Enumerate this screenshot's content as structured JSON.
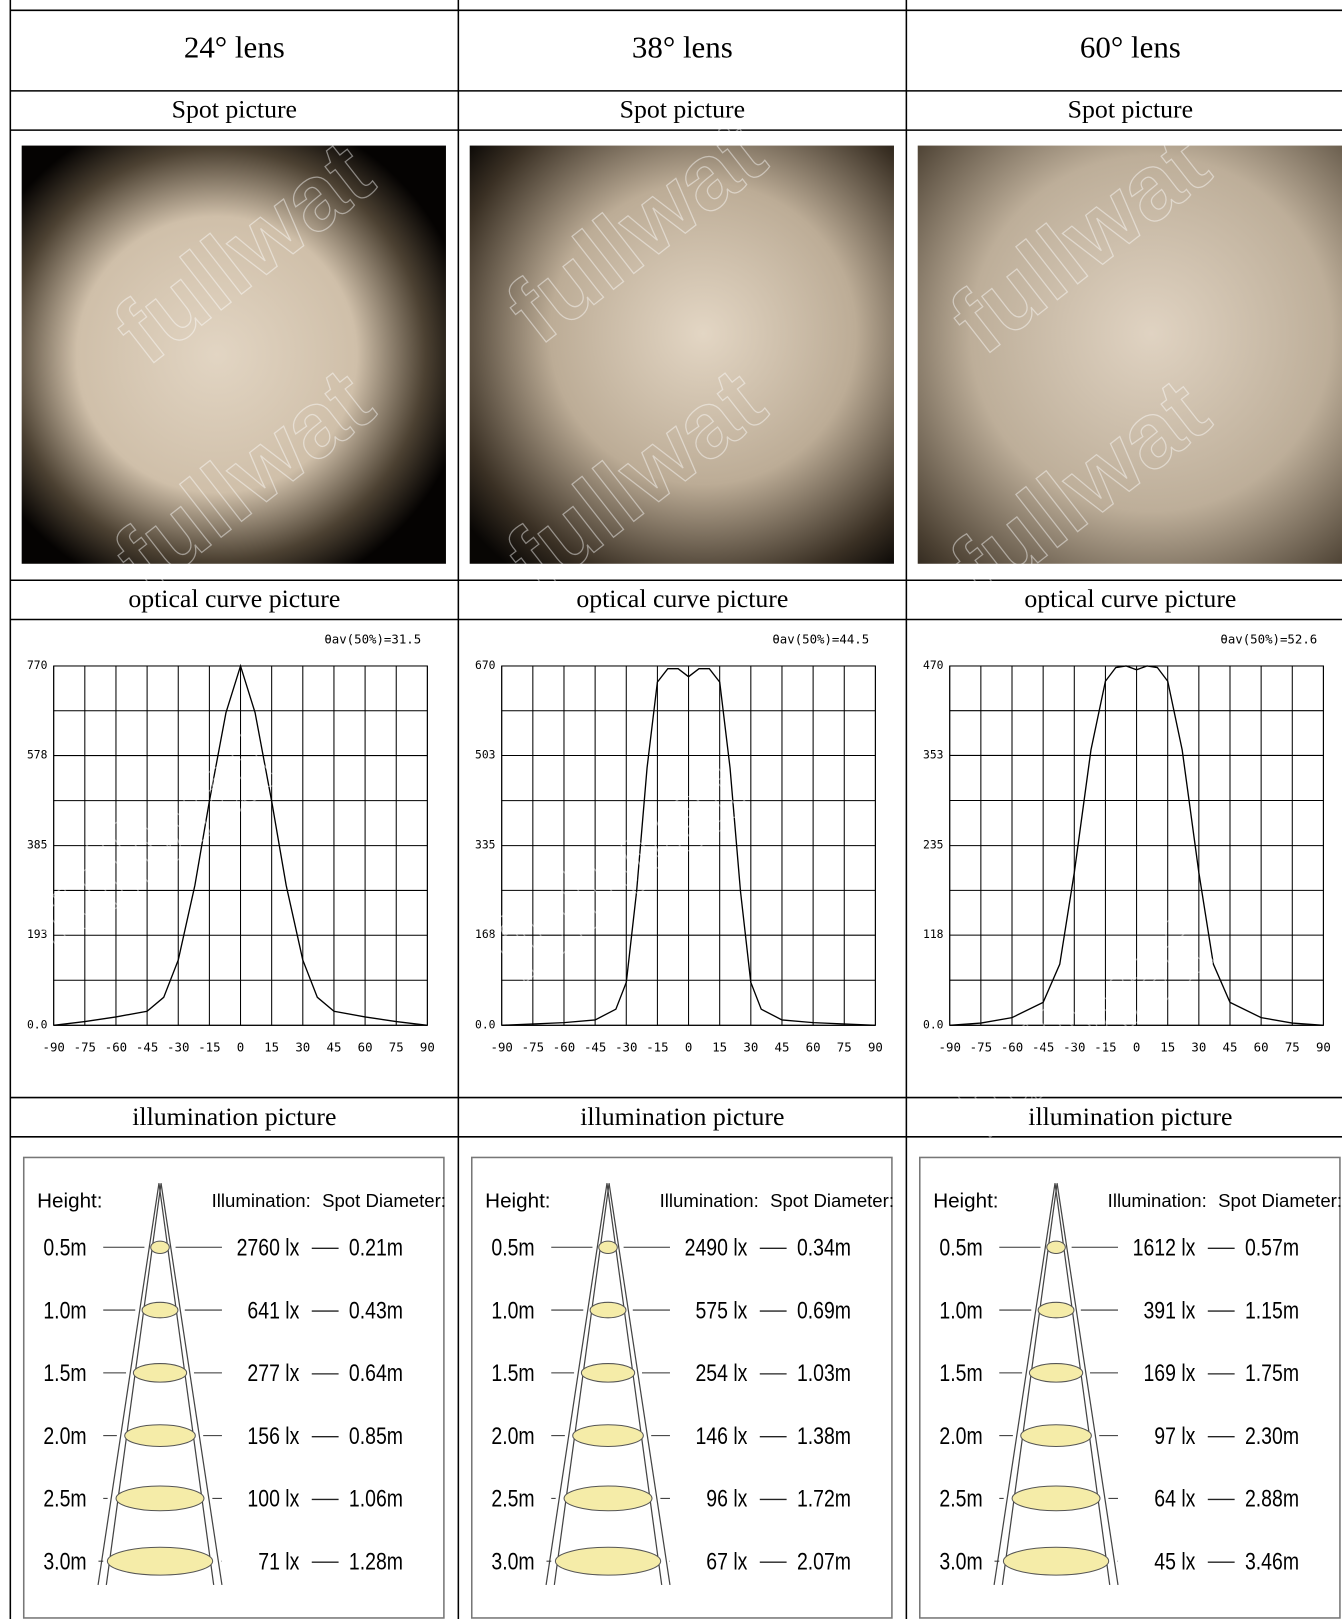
{
  "watermark": "fullwat",
  "columns": [
    {
      "header": "24° lens",
      "spot_label": "Spot picture",
      "curve_label": "optical curve picture",
      "illum_label": "illumination picture",
      "curve": {
        "type": "line",
        "annotation": "θav(50%)=31.5",
        "color": "#000000",
        "xlim": [
          -90,
          90
        ],
        "ylim": [
          0,
          770
        ],
        "xticks": [
          -90,
          -75,
          -60,
          -45,
          -30,
          -15,
          0,
          15,
          30,
          45,
          60,
          75,
          90
        ],
        "yticks": [
          {
            "value": 0,
            "label": "0.0"
          },
          193,
          385,
          578,
          770
        ],
        "x": [
          -90,
          -75,
          -60,
          -45,
          -37,
          -30,
          -22,
          -15,
          -7,
          0,
          7,
          15,
          22,
          30,
          37,
          45,
          60,
          75,
          90
        ],
        "values": [
          0,
          8,
          18,
          30,
          60,
          140,
          300,
          480,
          670,
          770,
          670,
          480,
          300,
          140,
          60,
          30,
          18,
          8,
          0
        ]
      },
      "illumination": {
        "height_title": "Height:",
        "illumination_title": "Illumination:",
        "diameter_title": "Spot Diameter:",
        "rows": [
          {
            "height": "0.5m",
            "lux": "2760 lx",
            "diameter": "0.21m"
          },
          {
            "height": "1.0m",
            "lux": "641 lx",
            "diameter": "0.43m"
          },
          {
            "height": "1.5m",
            "lux": "277 lx",
            "diameter": "0.64m"
          },
          {
            "height": "2.0m",
            "lux": "156 lx",
            "diameter": "0.85m"
          },
          {
            "height": "2.5m",
            "lux": "100 lx",
            "diameter": "1.06m"
          },
          {
            "height": "3.0m",
            "lux": "71 lx",
            "diameter": "1.28m"
          }
        ]
      }
    },
    {
      "header": "38° lens",
      "spot_label": "Spot picture",
      "curve_label": "optical curve picture",
      "illum_label": "illumination picture",
      "curve": {
        "type": "line",
        "annotation": "θav(50%)=44.5",
        "color": "#000000",
        "xlim": [
          -90,
          90
        ],
        "ylim": [
          0,
          670
        ],
        "xticks": [
          -90,
          -75,
          -60,
          -45,
          -30,
          -15,
          0,
          15,
          30,
          45,
          60,
          75,
          90
        ],
        "yticks": [
          {
            "value": 0,
            "label": "0.0"
          },
          168,
          335,
          503,
          670
        ],
        "x": [
          -90,
          -60,
          -45,
          -35,
          -30,
          -25,
          -20,
          -15,
          -10,
          -5,
          0,
          5,
          10,
          15,
          20,
          25,
          30,
          35,
          45,
          60,
          90
        ],
        "values": [
          0,
          5,
          10,
          30,
          80,
          250,
          480,
          640,
          665,
          665,
          650,
          665,
          665,
          640,
          480,
          250,
          80,
          30,
          10,
          5,
          0
        ]
      },
      "illumination": {
        "height_title": "Height:",
        "illumination_title": "Illumination:",
        "diameter_title": "Spot Diameter:",
        "rows": [
          {
            "height": "0.5m",
            "lux": "2490 lx",
            "diameter": "0.34m"
          },
          {
            "height": "1.0m",
            "lux": "575 lx",
            "diameter": "0.69m"
          },
          {
            "height": "1.5m",
            "lux": "254 lx",
            "diameter": "1.03m"
          },
          {
            "height": "2.0m",
            "lux": "146 lx",
            "diameter": "1.38m"
          },
          {
            "height": "2.5m",
            "lux": "96 lx",
            "diameter": "1.72m"
          },
          {
            "height": "3.0m",
            "lux": "67 lx",
            "diameter": "2.07m"
          }
        ]
      }
    },
    {
      "header": "60° lens",
      "spot_label": "Spot picture",
      "curve_label": "optical curve picture",
      "illum_label": "illumination picture",
      "curve": {
        "type": "line",
        "annotation": "θav(50%)=52.6",
        "color": "#000000",
        "xlim": [
          -90,
          90
        ],
        "ylim": [
          0,
          470
        ],
        "xticks": [
          -90,
          -75,
          -60,
          -45,
          -30,
          -15,
          0,
          15,
          30,
          45,
          60,
          75,
          90
        ],
        "yticks": [
          {
            "value": 0,
            "label": "0.0"
          },
          118,
          235,
          353,
          470
        ],
        "x": [
          -90,
          -75,
          -60,
          -45,
          -37,
          -30,
          -22,
          -15,
          -10,
          -5,
          0,
          5,
          10,
          15,
          22,
          30,
          37,
          45,
          60,
          75,
          90
        ],
        "values": [
          0,
          3,
          10,
          30,
          80,
          200,
          360,
          450,
          468,
          470,
          465,
          470,
          468,
          450,
          360,
          200,
          80,
          30,
          10,
          3,
          0
        ]
      },
      "illumination": {
        "height_title": "Height:",
        "illumination_title": "Illumination:",
        "diameter_title": "Spot Diameter:",
        "rows": [
          {
            "height": "0.5m",
            "lux": "1612 lx",
            "diameter": "0.57m"
          },
          {
            "height": "1.0m",
            "lux": "391 lx",
            "diameter": "1.15m"
          },
          {
            "height": "1.5m",
            "lux": "169 lx",
            "diameter": "1.75m"
          },
          {
            "height": "2.0m",
            "lux": "97 lx",
            "diameter": "2.30m"
          },
          {
            "height": "2.5m",
            "lux": "64 lx",
            "diameter": "2.88m"
          },
          {
            "height": "3.0m",
            "lux": "45 lx",
            "diameter": "3.46m"
          }
        ]
      }
    }
  ]
}
